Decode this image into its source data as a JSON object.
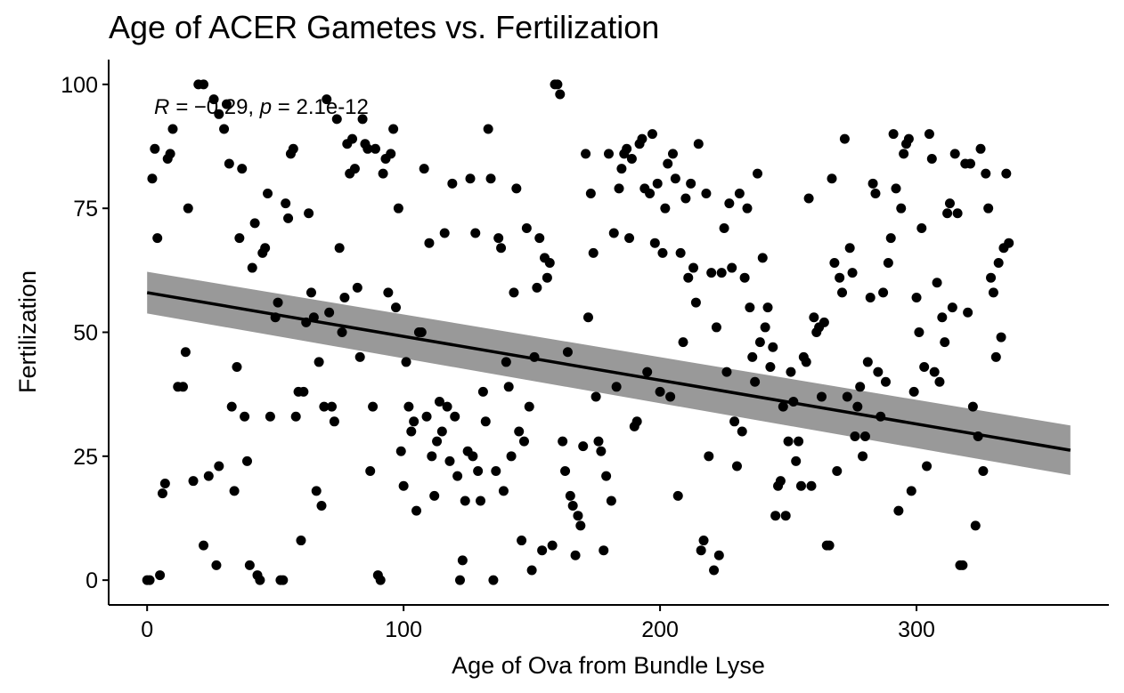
{
  "chart_data": {
    "type": "scatter",
    "title": "Age of ACER Gametes vs. Fertilization",
    "xlabel": "Age of Ova from Bundle Lyse",
    "ylabel": "Fertilization",
    "xlim": [
      -15,
      375
    ],
    "ylim": [
      -5,
      105
    ],
    "x_ticks": [
      0,
      100,
      200,
      300
    ],
    "y_ticks": [
      0,
      25,
      50,
      75,
      100
    ],
    "annotation": {
      "r_prefix": "R = ",
      "r_value": "−0.29",
      "p_prefix": "p",
      "p_value": " = 2.1e-12"
    },
    "regression": {
      "x": [
        0,
        360
      ],
      "y": [
        58,
        26.2
      ],
      "ci_lower": [
        53.8,
        21.2
      ],
      "ci_upper": [
        62.2,
        31.2
      ]
    },
    "grid": false,
    "legend": "none",
    "point_color": "#000000",
    "ribbon_color": "#999999",
    "line_color": "#000000",
    "points": [
      [
        0,
        0
      ],
      [
        1,
        0
      ],
      [
        2,
        81
      ],
      [
        3,
        87
      ],
      [
        4,
        69
      ],
      [
        5,
        1
      ],
      [
        6,
        17.5
      ],
      [
        7,
        19.5
      ],
      [
        8,
        85
      ],
      [
        9,
        86
      ],
      [
        10,
        91
      ],
      [
        12,
        39
      ],
      [
        14,
        39
      ],
      [
        15,
        46
      ],
      [
        16,
        75
      ],
      [
        18,
        20
      ],
      [
        20,
        100
      ],
      [
        22,
        100
      ],
      [
        22,
        7
      ],
      [
        24,
        21
      ],
      [
        26,
        97
      ],
      [
        27,
        3
      ],
      [
        28,
        23
      ],
      [
        28,
        94
      ],
      [
        30,
        91
      ],
      [
        31,
        96
      ],
      [
        32,
        84
      ],
      [
        33,
        35
      ],
      [
        34,
        18
      ],
      [
        35,
        43
      ],
      [
        36,
        69
      ],
      [
        37,
        83
      ],
      [
        38,
        33
      ],
      [
        39,
        24
      ],
      [
        40,
        3
      ],
      [
        41,
        63
      ],
      [
        42,
        72
      ],
      [
        43,
        1
      ],
      [
        44,
        0
      ],
      [
        45,
        66
      ],
      [
        46,
        67
      ],
      [
        47,
        78
      ],
      [
        48,
        33
      ],
      [
        50,
        53
      ],
      [
        51,
        56
      ],
      [
        52,
        0
      ],
      [
        53,
        0
      ],
      [
        54,
        76
      ],
      [
        55,
        73
      ],
      [
        56,
        86
      ],
      [
        57,
        87
      ],
      [
        58,
        33
      ],
      [
        59,
        38
      ],
      [
        60,
        8
      ],
      [
        61,
        38
      ],
      [
        62,
        52
      ],
      [
        63,
        74
      ],
      [
        64,
        58
      ],
      [
        65,
        53
      ],
      [
        66,
        18
      ],
      [
        67,
        44
      ],
      [
        68,
        15
      ],
      [
        69,
        35
      ],
      [
        70,
        97
      ],
      [
        71,
        54
      ],
      [
        72,
        35
      ],
      [
        73,
        32
      ],
      [
        74,
        93
      ],
      [
        75,
        67
      ],
      [
        76,
        50
      ],
      [
        77,
        57
      ],
      [
        78,
        88
      ],
      [
        79,
        82
      ],
      [
        80,
        89
      ],
      [
        81,
        83
      ],
      [
        82,
        59
      ],
      [
        83,
        45
      ],
      [
        84,
        93
      ],
      [
        85,
        88
      ],
      [
        86,
        87
      ],
      [
        87,
        22
      ],
      [
        88,
        35
      ],
      [
        89,
        87
      ],
      [
        90,
        1
      ],
      [
        91,
        0
      ],
      [
        92,
        82
      ],
      [
        93,
        85
      ],
      [
        94,
        58
      ],
      [
        95,
        86
      ],
      [
        96,
        91
      ],
      [
        97,
        55
      ],
      [
        98,
        75
      ],
      [
        99,
        26
      ],
      [
        100,
        19
      ],
      [
        101,
        44
      ],
      [
        102,
        35
      ],
      [
        103,
        30
      ],
      [
        104,
        32
      ],
      [
        105,
        14
      ],
      [
        106,
        50
      ],
      [
        107,
        50
      ],
      [
        108,
        83
      ],
      [
        109,
        33
      ],
      [
        110,
        68
      ],
      [
        111,
        25
      ],
      [
        112,
        17
      ],
      [
        113,
        28
      ],
      [
        114,
        36
      ],
      [
        115,
        30
      ],
      [
        116,
        70
      ],
      [
        117,
        35
      ],
      [
        118,
        24
      ],
      [
        119,
        80
      ],
      [
        120,
        33
      ],
      [
        121,
        21
      ],
      [
        122,
        0
      ],
      [
        123,
        4
      ],
      [
        124,
        16
      ],
      [
        125,
        26
      ],
      [
        126,
        81
      ],
      [
        127,
        25
      ],
      [
        128,
        70
      ],
      [
        129,
        22
      ],
      [
        130,
        16
      ],
      [
        131,
        38
      ],
      [
        132,
        32
      ],
      [
        133,
        91
      ],
      [
        134,
        81
      ],
      [
        135,
        0
      ],
      [
        136,
        22
      ],
      [
        137,
        69
      ],
      [
        138,
        67
      ],
      [
        139,
        18
      ],
      [
        140,
        44
      ],
      [
        141,
        39
      ],
      [
        142,
        25
      ],
      [
        143,
        58
      ],
      [
        144,
        79
      ],
      [
        145,
        30
      ],
      [
        146,
        8
      ],
      [
        147,
        28
      ],
      [
        148,
        71
      ],
      [
        149,
        35
      ],
      [
        150,
        2
      ],
      [
        151,
        45
      ],
      [
        152,
        59
      ],
      [
        153,
        69
      ],
      [
        154,
        6
      ],
      [
        155,
        65
      ],
      [
        156,
        61
      ],
      [
        157,
        64
      ],
      [
        158,
        7
      ],
      [
        159,
        100
      ],
      [
        160,
        100
      ],
      [
        161,
        98
      ],
      [
        162,
        28
      ],
      [
        163,
        22
      ],
      [
        164,
        46
      ],
      [
        165,
        17
      ],
      [
        166,
        15
      ],
      [
        167,
        5
      ],
      [
        168,
        13
      ],
      [
        169,
        11
      ],
      [
        170,
        27
      ],
      [
        171,
        86
      ],
      [
        172,
        53
      ],
      [
        173,
        78
      ],
      [
        174,
        66
      ],
      [
        175,
        37
      ],
      [
        176,
        28
      ],
      [
        177,
        26
      ],
      [
        178,
        6
      ],
      [
        179,
        21
      ],
      [
        180,
        86
      ],
      [
        181,
        16
      ],
      [
        182,
        70
      ],
      [
        183,
        39
      ],
      [
        184,
        79
      ],
      [
        185,
        83
      ],
      [
        186,
        86
      ],
      [
        187,
        87
      ],
      [
        188,
        69
      ],
      [
        189,
        85
      ],
      [
        190,
        31
      ],
      [
        191,
        32
      ],
      [
        192,
        88
      ],
      [
        193,
        89
      ],
      [
        194,
        79
      ],
      [
        195,
        42
      ],
      [
        196,
        78
      ],
      [
        197,
        90
      ],
      [
        198,
        68
      ],
      [
        199,
        80
      ],
      [
        200,
        38
      ],
      [
        201,
        66
      ],
      [
        202,
        75
      ],
      [
        203,
        84
      ],
      [
        204,
        37
      ],
      [
        205,
        86
      ],
      [
        206,
        81
      ],
      [
        207,
        17
      ],
      [
        208,
        66
      ],
      [
        209,
        48
      ],
      [
        210,
        77
      ],
      [
        211,
        61
      ],
      [
        212,
        80
      ],
      [
        213,
        63
      ],
      [
        214,
        56
      ],
      [
        215,
        88
      ],
      [
        216,
        6
      ],
      [
        217,
        8
      ],
      [
        218,
        78
      ],
      [
        219,
        25
      ],
      [
        220,
        62
      ],
      [
        221,
        2
      ],
      [
        222,
        51
      ],
      [
        223,
        5
      ],
      [
        224,
        62
      ],
      [
        225,
        71
      ],
      [
        226,
        42
      ],
      [
        227,
        76
      ],
      [
        228,
        63
      ],
      [
        229,
        32
      ],
      [
        230,
        23
      ],
      [
        231,
        78
      ],
      [
        232,
        30
      ],
      [
        233,
        61
      ],
      [
        234,
        75
      ],
      [
        235,
        55
      ],
      [
        236,
        45
      ],
      [
        237,
        40
      ],
      [
        238,
        82
      ],
      [
        239,
        48
      ],
      [
        240,
        65
      ],
      [
        241,
        51
      ],
      [
        242,
        55
      ],
      [
        243,
        43
      ],
      [
        244,
        47
      ],
      [
        245,
        13
      ],
      [
        246,
        19
      ],
      [
        247,
        20
      ],
      [
        248,
        35
      ],
      [
        249,
        13
      ],
      [
        250,
        28
      ],
      [
        251,
        42
      ],
      [
        252,
        36
      ],
      [
        253,
        24
      ],
      [
        254,
        28
      ],
      [
        255,
        19
      ],
      [
        256,
        45
      ],
      [
        257,
        44
      ],
      [
        258,
        77
      ],
      [
        259,
        19
      ],
      [
        260,
        53
      ],
      [
        261,
        50
      ],
      [
        262,
        51
      ],
      [
        263,
        37
      ],
      [
        264,
        52
      ],
      [
        265,
        7
      ],
      [
        266,
        7
      ],
      [
        267,
        81
      ],
      [
        268,
        64
      ],
      [
        269,
        22
      ],
      [
        270,
        61
      ],
      [
        271,
        58
      ],
      [
        272,
        89
      ],
      [
        273,
        37
      ],
      [
        274,
        67
      ],
      [
        275,
        62
      ],
      [
        276,
        29
      ],
      [
        277,
        35
      ],
      [
        278,
        39
      ],
      [
        279,
        25
      ],
      [
        280,
        29
      ],
      [
        281,
        44
      ],
      [
        282,
        57
      ],
      [
        283,
        80
      ],
      [
        284,
        78
      ],
      [
        285,
        42
      ],
      [
        286,
        33
      ],
      [
        287,
        58
      ],
      [
        288,
        40
      ],
      [
        289,
        64
      ],
      [
        290,
        69
      ],
      [
        291,
        90
      ],
      [
        292,
        79
      ],
      [
        293,
        14
      ],
      [
        294,
        75
      ],
      [
        295,
        86
      ],
      [
        296,
        88
      ],
      [
        297,
        89
      ],
      [
        298,
        18
      ],
      [
        299,
        38
      ],
      [
        300,
        57
      ],
      [
        301,
        50
      ],
      [
        302,
        71
      ],
      [
        303,
        43
      ],
      [
        304,
        23
      ],
      [
        305,
        90
      ],
      [
        306,
        85
      ],
      [
        307,
        42
      ],
      [
        308,
        60
      ],
      [
        309,
        40
      ],
      [
        310,
        53
      ],
      [
        311,
        48
      ],
      [
        312,
        74
      ],
      [
        313,
        76
      ],
      [
        314,
        55
      ],
      [
        315,
        86
      ],
      [
        316,
        74
      ],
      [
        317,
        3
      ],
      [
        318,
        3
      ],
      [
        319,
        84
      ],
      [
        320,
        54
      ],
      [
        321,
        84
      ],
      [
        322,
        35
      ],
      [
        323,
        11
      ],
      [
        324,
        29
      ],
      [
        325,
        87
      ],
      [
        326,
        22
      ],
      [
        327,
        82
      ],
      [
        328,
        75
      ],
      [
        329,
        61
      ],
      [
        330,
        58
      ],
      [
        331,
        45
      ],
      [
        332,
        64
      ],
      [
        333,
        49
      ],
      [
        334,
        67
      ],
      [
        335,
        82
      ],
      [
        336,
        68
      ]
    ]
  }
}
